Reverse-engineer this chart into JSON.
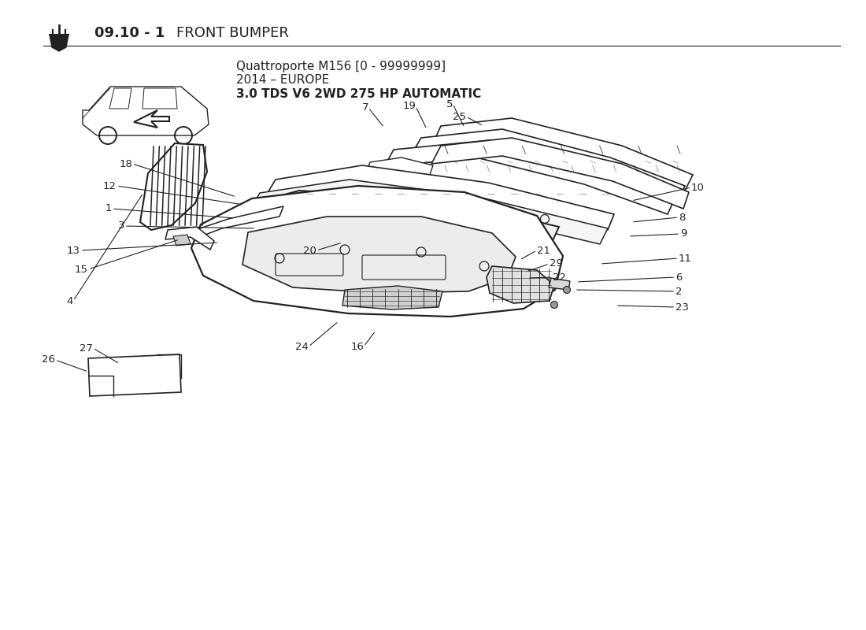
{
  "title_bold": "09.10 - 1",
  "title_regular": " FRONT BUMPER",
  "subtitle_line1": "Quattroporte M156 [0 - 99999999]",
  "subtitle_line2": "2014 – EUROPE",
  "subtitle_line3": "3.0 TDS V6 2WD 275 HP AUTOMATIC",
  "bg_color": "#ffffff",
  "line_color": "#222222"
}
